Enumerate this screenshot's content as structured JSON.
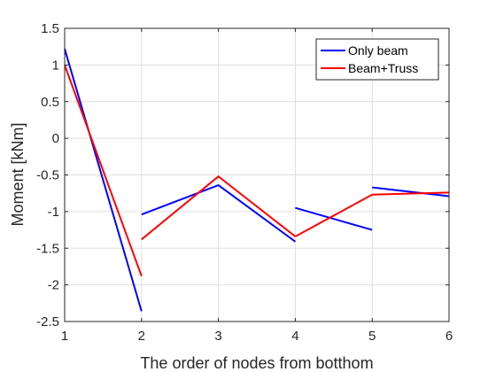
{
  "chart_data": {
    "type": "line",
    "title": "",
    "xlabel": "The order of nodes from botthom",
    "ylabel": "Moment [kNm]",
    "xlim": [
      1,
      6
    ],
    "ylim": [
      -2.5,
      1.5
    ],
    "xticks": [
      1,
      2,
      3,
      4,
      5,
      6
    ],
    "yticks": [
      -2.5,
      -2,
      -1.5,
      -1,
      -0.5,
      0,
      0.5,
      1,
      1.5
    ],
    "xtick_labels": [
      "1",
      "2",
      "3",
      "4",
      "5",
      "6"
    ],
    "ytick_labels": [
      "-2.5",
      "-2",
      "-1.5",
      "-1",
      "-0.5",
      "0",
      "0.5",
      "1",
      "1.5"
    ],
    "grid": true,
    "legend_position": "top-right",
    "series": [
      {
        "name": "Only beam",
        "color": "#0000ff",
        "segments": [
          [
            [
              1,
              1.22
            ],
            [
              2,
              -2.36
            ]
          ],
          [
            [
              2,
              -1.04
            ],
            [
              3,
              -0.64
            ],
            [
              4,
              -1.41
            ]
          ],
          [
            [
              4,
              -0.95
            ],
            [
              5,
              -1.25
            ]
          ],
          [
            [
              5,
              -0.67
            ],
            [
              6,
              -0.79
            ]
          ]
        ]
      },
      {
        "name": "Beam+Truss",
        "color": "#ff0000",
        "segments": [
          [
            [
              1,
              1.0
            ],
            [
              2,
              -1.88
            ]
          ],
          [
            [
              2,
              -1.38
            ],
            [
              3,
              -0.52
            ],
            [
              4,
              -1.34
            ]
          ],
          [
            [
              4,
              -1.34
            ],
            [
              5,
              -0.77
            ],
            [
              6,
              -0.74
            ]
          ]
        ]
      }
    ]
  }
}
